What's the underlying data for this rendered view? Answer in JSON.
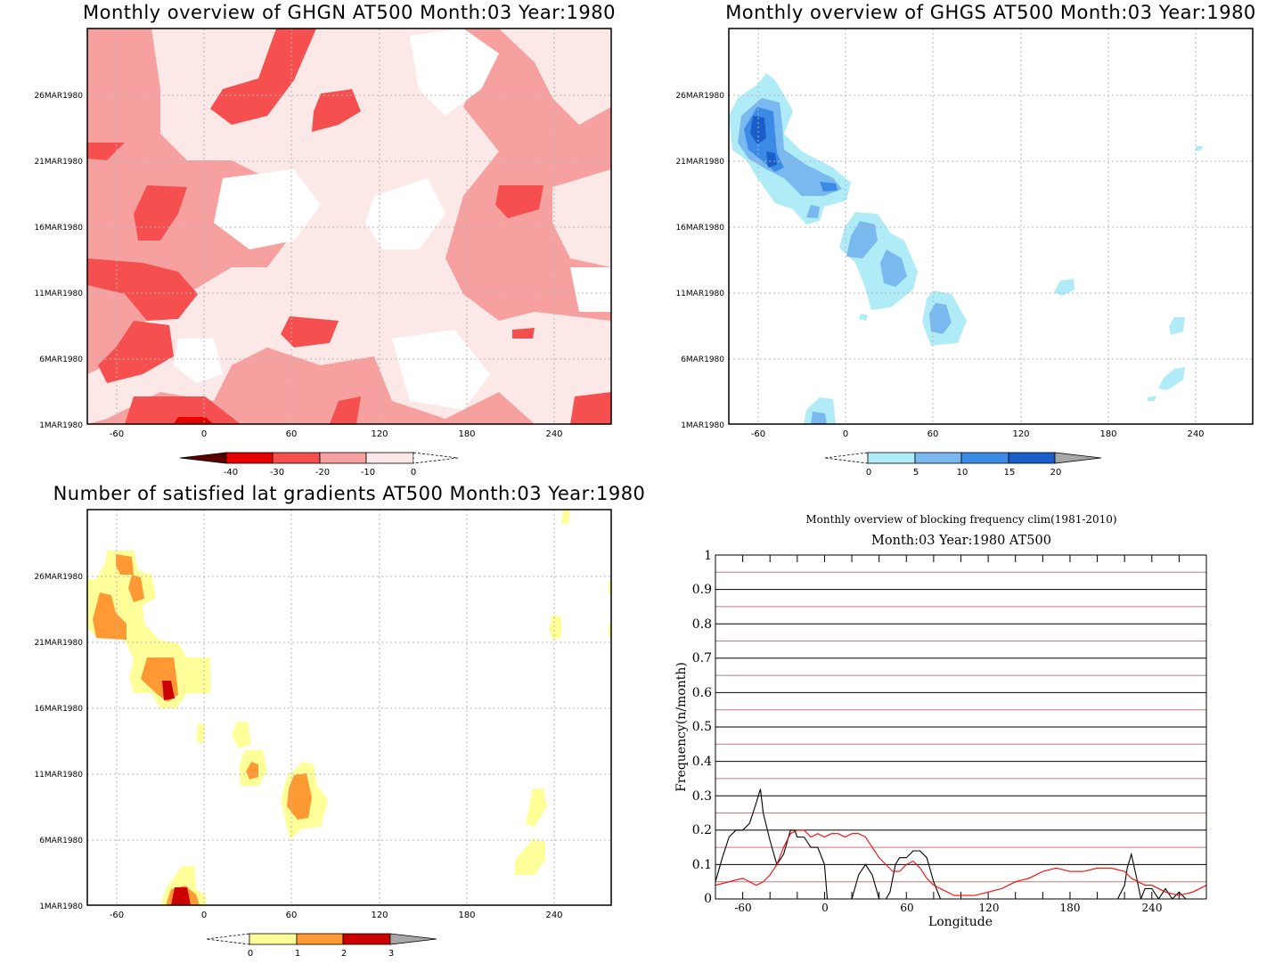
{
  "panels": {
    "ghgn": {
      "title": "Monthly overview of GHGN AT500 Month:03 Year:1980",
      "x_ticks": [
        "-60",
        "0",
        "60",
        "120",
        "180",
        "240"
      ],
      "y_ticks": [
        "1MAR1980",
        "6MAR1980",
        "11MAR1980",
        "16MAR1980",
        "21MAR1980",
        "26MAR1980"
      ],
      "colorbar": {
        "labels": [
          "-40",
          "-30",
          "-20",
          "-10",
          "0"
        ],
        "colors": [
          "#5a0000",
          "#e60000",
          "#f54f4f",
          "#f7a0a0",
          "#fde8e8"
        ]
      }
    },
    "ghgs": {
      "title": "Monthly overview of GHGS AT500 Month:03 Year:1980",
      "x_ticks": [
        "-60",
        "0",
        "60",
        "120",
        "180",
        "240"
      ],
      "y_ticks": [
        "1MAR1980",
        "6MAR1980",
        "11MAR1980",
        "16MAR1980",
        "21MAR1980",
        "26MAR1980"
      ],
      "colorbar": {
        "labels": [
          "0",
          "5",
          "10",
          "15",
          "20"
        ],
        "colors": [
          "#b0ecf7",
          "#7ab8f0",
          "#3b8ae6",
          "#1a5fc9",
          "#a8a8a8"
        ]
      }
    },
    "lat": {
      "title": "Number of satisfied lat gradients AT500 Month:03 Year:1980",
      "x_ticks": [
        "-60",
        "0",
        "60",
        "120",
        "180",
        "240"
      ],
      "y_ticks": [
        "1MAR1980",
        "6MAR1980",
        "11MAR1980",
        "16MAR1980",
        "21MAR1980",
        "26MAR1980"
      ],
      "colorbar": {
        "labels": [
          "0",
          "1",
          "2",
          "3"
        ],
        "colors": [
          "#ffff99",
          "#ff9933",
          "#cc0000",
          "#a8a8a8"
        ]
      }
    }
  },
  "freq": {
    "title1": "Monthly overview of blocking frequency clim(1981-2010)",
    "title2": "Month:03 Year:1980  AT500",
    "ylabel": "Frequency(n/month)",
    "xlabel": "Longitude",
    "x_ticks": [
      "-60",
      "0",
      "60",
      "120",
      "180",
      "240"
    ],
    "y_ticks": [
      "0",
      "0.1",
      "0.2",
      "0.3",
      "0.4",
      "0.5",
      "0.6",
      "0.7",
      "0.8",
      "0.9",
      "1"
    ]
  },
  "chart_data": [
    {
      "type": "heatmap",
      "title": "Monthly overview of GHGN AT500 Month:03 Year:1980",
      "x": [
        -60,
        0,
        60,
        120,
        180,
        240
      ],
      "y": [
        "1MAR1980",
        "6MAR1980",
        "11MAR1980",
        "16MAR1980",
        "21MAR1980",
        "26MAR1980"
      ],
      "levels": [
        -40,
        -30,
        -20,
        -10,
        0
      ],
      "xlim": [
        -80,
        280
      ]
    },
    {
      "type": "heatmap",
      "title": "Monthly overview of GHGS AT500 Month:03 Year:1980",
      "x": [
        -60,
        0,
        60,
        120,
        180,
        240
      ],
      "y": [
        "1MAR1980",
        "6MAR1980",
        "11MAR1980",
        "16MAR1980",
        "21MAR1980",
        "26MAR1980"
      ],
      "levels": [
        0,
        5,
        10,
        15,
        20
      ],
      "xlim": [
        -80,
        280
      ]
    },
    {
      "type": "heatmap",
      "title": "Number of satisfied lat gradients AT500 Month:03 Year:1980",
      "x": [
        -60,
        0,
        60,
        120,
        180,
        240
      ],
      "y": [
        "1MAR1980",
        "6MAR1980",
        "11MAR1980",
        "16MAR1980",
        "21MAR1980",
        "26MAR1980"
      ],
      "levels": [
        0,
        1,
        2,
        3
      ],
      "xlim": [
        -80,
        280
      ]
    },
    {
      "type": "line",
      "title": "Monthly overview of blocking frequency clim(1981-2010)",
      "xlabel": "Longitude",
      "ylabel": "Frequency(n/month)",
      "xlim": [
        -80,
        280
      ],
      "ylim": [
        0,
        1
      ],
      "grid": true,
      "series": [
        {
          "color": "#000000",
          "x": [
            -80,
            -75,
            -70,
            -65,
            -60,
            -55,
            -50,
            -47,
            -45,
            -40,
            -35,
            -30,
            -25,
            -22,
            -20,
            -15,
            -10,
            -5,
            0,
            2,
            5,
            10,
            20,
            25,
            30,
            35,
            40,
            42,
            45,
            48,
            52,
            55,
            60,
            65,
            70,
            75,
            80,
            85,
            90,
            100,
            130,
            150,
            180,
            200,
            215,
            220,
            222,
            225,
            230,
            232,
            235,
            240,
            245,
            250,
            255,
            260,
            265,
            270,
            275,
            280
          ],
          "y": [
            0.05,
            0.12,
            0.18,
            0.2,
            0.2,
            0.22,
            0.28,
            0.32,
            0.25,
            0.17,
            0.1,
            0.13,
            0.2,
            0.2,
            0.18,
            0.18,
            0.15,
            0.15,
            0.1,
            0,
            0,
            0,
            0,
            0.07,
            0.1,
            0.07,
            0,
            0,
            0,
            0.02,
            0.1,
            0.12,
            0.12,
            0.14,
            0.14,
            0.12,
            0.05,
            0,
            0,
            0,
            0,
            0,
            0,
            0,
            0,
            0.04,
            0.09,
            0.13,
            0.04,
            0,
            0.03,
            0.03,
            0,
            0.03,
            0,
            0.02,
            0,
            0,
            0,
            0
          ]
        },
        {
          "color": "#ff0000",
          "x": [
            -80,
            -70,
            -60,
            -55,
            -50,
            -45,
            -40,
            -35,
            -30,
            -25,
            -20,
            -15,
            -10,
            -5,
            0,
            5,
            10,
            15,
            20,
            25,
            30,
            35,
            40,
            45,
            50,
            55,
            60,
            65,
            70,
            75,
            80,
            85,
            90,
            95,
            100,
            110,
            120,
            130,
            140,
            150,
            160,
            170,
            180,
            190,
            200,
            210,
            220,
            225,
            230,
            235,
            240,
            250,
            260,
            270,
            280
          ],
          "y": [
            0.04,
            0.05,
            0.06,
            0.05,
            0.04,
            0.05,
            0.07,
            0.1,
            0.15,
            0.19,
            0.2,
            0.2,
            0.18,
            0.19,
            0.18,
            0.19,
            0.19,
            0.18,
            0.19,
            0.19,
            0.18,
            0.15,
            0.12,
            0.1,
            0.08,
            0.08,
            0.1,
            0.11,
            0.09,
            0.06,
            0.04,
            0.03,
            0.02,
            0.01,
            0.01,
            0.01,
            0.02,
            0.03,
            0.05,
            0.06,
            0.08,
            0.09,
            0.08,
            0.08,
            0.09,
            0.09,
            0.08,
            0.06,
            0.05,
            0.04,
            0.04,
            0.02,
            0.01,
            0.02,
            0.04
          ]
        }
      ]
    }
  ]
}
